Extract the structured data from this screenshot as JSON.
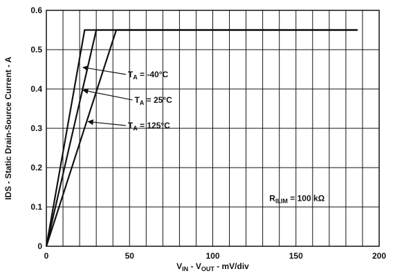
{
  "chart_data": {
    "type": "line",
    "xlabel": {
      "parts": [
        {
          "t": "V"
        },
        {
          "t": "IN",
          "sub": true
        },
        {
          "t": " - V"
        },
        {
          "t": "OUT",
          "sub": true
        },
        {
          "t": " - mV/div"
        }
      ]
    },
    "ylabel": "IDS - Static Drain-Source Current - A",
    "xlim": [
      0,
      200
    ],
    "ylim": [
      0,
      0.6
    ],
    "x_ticks": [
      0,
      50,
      100,
      150,
      200
    ],
    "y_ticks": [
      0,
      0.1,
      0.2,
      0.3,
      0.4,
      0.5,
      0.6
    ],
    "x_tick_labels": [
      "0",
      "50",
      "100",
      "150",
      "200"
    ],
    "y_tick_labels": [
      "0",
      "0.1",
      "0.2",
      "0.3",
      "0.4",
      "0.5",
      "0.6"
    ],
    "grid": true,
    "line_color": "#111111",
    "series": [
      {
        "label": {
          "parts": [
            {
              "t": "T"
            },
            {
              "t": "A",
              "sub": true
            },
            {
              "t": " = -40°C"
            }
          ]
        },
        "x": [
          0,
          23,
          187
        ],
        "y": [
          0,
          0.55,
          0.55
        ],
        "label_at": {
          "x": 49,
          "y": 0.43
        },
        "arrow_to": {
          "x": 22,
          "y": 0.455
        }
      },
      {
        "label": {
          "parts": [
            {
              "t": "T"
            },
            {
              "t": "A",
              "sub": true
            },
            {
              "t": " = 25°C"
            }
          ]
        },
        "x": [
          0,
          30,
          187
        ],
        "y": [
          0,
          0.55,
          0.55
        ],
        "label_at": {
          "x": 53,
          "y": 0.365
        },
        "arrow_to": {
          "x": 22,
          "y": 0.397
        }
      },
      {
        "label": {
          "parts": [
            {
              "t": "T"
            },
            {
              "t": "A",
              "sub": true
            },
            {
              "t": " = 125°C"
            }
          ]
        },
        "x": [
          0,
          42,
          187
        ],
        "y": [
          0,
          0.55,
          0.55
        ],
        "label_at": {
          "x": 49,
          "y": 0.3
        },
        "arrow_to": {
          "x": 25,
          "y": 0.317
        }
      }
    ],
    "annotations": [
      {
        "parts": [
          {
            "t": "R"
          },
          {
            "t": "ILIM",
            "sub": true
          },
          {
            "t": " = 100 kΩ"
          }
        ],
        "at": {
          "x": 134,
          "y": 0.115
        }
      }
    ]
  }
}
